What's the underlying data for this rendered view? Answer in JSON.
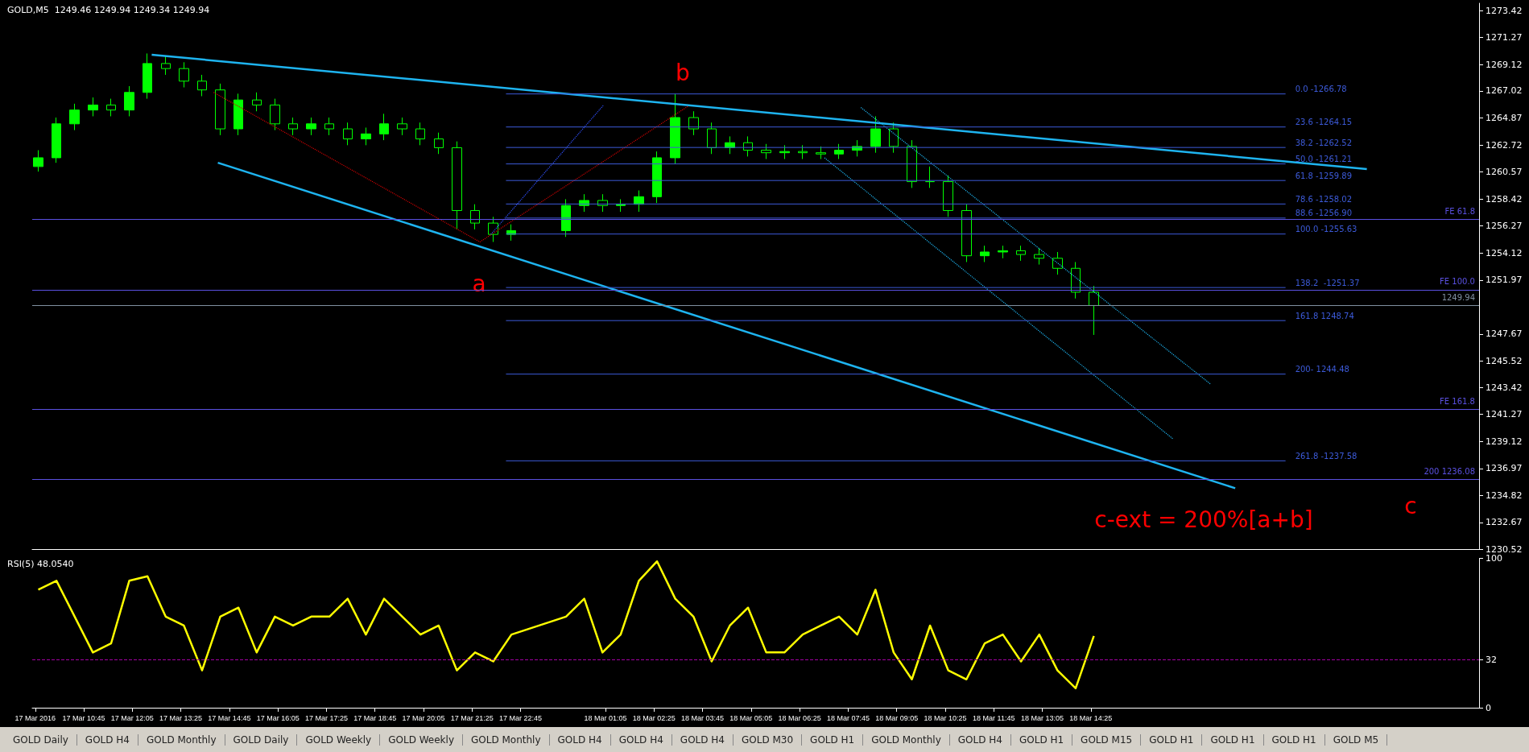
{
  "chart_data": [
    {
      "type": "candlestick",
      "title": "GOLD,M5  1249.46 1249.94 1249.34 1249.94",
      "tick_labels": "y",
      "x": [
        "2016-03-17T09:30",
        "2016-03-17T10:00",
        "2016-03-17T10:30",
        "2016-03-17T11:00",
        "2016-03-17T11:30",
        "2016-03-17T12:00",
        "2016-03-17T12:30",
        "2016-03-17T13:00",
        "2016-03-17T13:30",
        "2016-03-17T14:00",
        "2016-03-17T14:30",
        "2016-03-17T15:00",
        "2016-03-17T15:30",
        "2016-03-17T16:00",
        "2016-03-17T16:30",
        "2016-03-17T17:00",
        "2016-03-17T17:30",
        "2016-03-17T18:00",
        "2016-03-17T18:30",
        "2016-03-17T19:00",
        "2016-03-17T19:30",
        "2016-03-17T20:00",
        "2016-03-17T20:30",
        "2016-03-17T21:00",
        "2016-03-17T21:30",
        "2016-03-17T22:00",
        "2016-03-17T22:30",
        "2016-03-18T00:00",
        "2016-03-18T00:30",
        "2016-03-18T01:00",
        "2016-03-18T01:30",
        "2016-03-18T02:00",
        "2016-03-18T02:30",
        "2016-03-18T03:00",
        "2016-03-18T03:30",
        "2016-03-18T04:00",
        "2016-03-18T04:30",
        "2016-03-18T05:00",
        "2016-03-18T05:30",
        "2016-03-18T06:00",
        "2016-03-18T06:30",
        "2016-03-18T07:00",
        "2016-03-18T07:30",
        "2016-03-18T08:00",
        "2016-03-18T08:30",
        "2016-03-18T09:00",
        "2016-03-18T09:30",
        "2016-03-18T10:00",
        "2016-03-18T10:30",
        "2016-03-18T11:00",
        "2016-03-18T11:30",
        "2016-03-18T12:00",
        "2016-03-18T12:30",
        "2016-03-18T13:00",
        "2016-03-18T13:30",
        "2016-03-18T14:00",
        "2016-03-18T14:30"
      ],
      "xlim": [
        "2016-03-17T09:20",
        "2016-03-19T01:05"
      ],
      "ylim": [
        1230.52,
        1274.0
      ],
      "yticks": [
        1273.42,
        1271.27,
        1269.12,
        1267.02,
        1264.87,
        1262.72,
        1260.57,
        1258.42,
        1256.27,
        1254.12,
        1251.97,
        1247.67,
        1245.52,
        1243.42,
        1241.27,
        1239.12,
        1236.97,
        1234.82,
        1232.67,
        1230.52
      ],
      "series": [
        {
          "color": "#00ff00",
          "ohlc": [
            [
              1261.0,
              1262.3,
              1260.6,
              1261.7
            ],
            [
              1261.7,
              1264.9,
              1261.3,
              1264.4
            ],
            [
              1264.4,
              1266.0,
              1263.9,
              1265.5
            ],
            [
              1265.5,
              1266.5,
              1265.0,
              1265.9
            ],
            [
              1265.9,
              1266.4,
              1265.0,
              1265.5
            ],
            [
              1265.5,
              1267.4,
              1265.0,
              1266.9
            ],
            [
              1266.9,
              1270.0,
              1266.4,
              1269.2
            ],
            [
              1269.2,
              1269.8,
              1268.3,
              1268.8
            ],
            [
              1268.8,
              1269.3,
              1267.3,
              1267.8
            ],
            [
              1267.8,
              1268.3,
              1266.6,
              1267.1
            ],
            [
              1267.1,
              1267.6,
              1263.5,
              1264.0
            ],
            [
              1264.0,
              1266.8,
              1263.5,
              1266.3
            ],
            [
              1266.3,
              1266.9,
              1265.4,
              1265.9
            ],
            [
              1265.9,
              1266.4,
              1263.9,
              1264.4
            ],
            [
              1264.4,
              1264.9,
              1263.5,
              1264.0
            ],
            [
              1264.0,
              1264.9,
              1263.5,
              1264.4
            ],
            [
              1264.4,
              1264.9,
              1263.5,
              1264.0
            ],
            [
              1264.0,
              1264.5,
              1262.7,
              1263.2
            ],
            [
              1263.2,
              1264.1,
              1262.7,
              1263.6
            ],
            [
              1263.6,
              1265.2,
              1263.1,
              1264.4
            ],
            [
              1264.4,
              1264.9,
              1263.5,
              1264.0
            ],
            [
              1264.0,
              1264.5,
              1262.7,
              1263.2
            ],
            [
              1263.2,
              1263.7,
              1262.0,
              1262.5
            ],
            [
              1262.5,
              1263.0,
              1256.0,
              1257.5
            ],
            [
              1257.5,
              1258.0,
              1256.0,
              1256.5
            ],
            [
              1256.5,
              1257.0,
              1255.0,
              1255.6
            ],
            [
              1255.6,
              1256.4,
              1255.1,
              1255.9
            ],
            [
              1255.9,
              1258.4,
              1255.4,
              1257.9
            ],
            [
              1257.9,
              1258.8,
              1257.4,
              1258.3
            ],
            [
              1258.3,
              1258.8,
              1257.4,
              1257.9
            ],
            [
              1257.9,
              1258.4,
              1257.4,
              1258.0
            ],
            [
              1258.0,
              1259.1,
              1257.4,
              1258.6
            ],
            [
              1258.6,
              1262.2,
              1258.1,
              1261.7
            ],
            [
              1261.7,
              1266.78,
              1261.2,
              1264.9
            ],
            [
              1264.9,
              1265.4,
              1263.5,
              1264.0
            ],
            [
              1264.0,
              1264.5,
              1262.0,
              1262.5
            ],
            [
              1262.5,
              1263.4,
              1262.0,
              1262.9
            ],
            [
              1262.9,
              1263.4,
              1261.8,
              1262.3
            ],
            [
              1262.3,
              1262.8,
              1261.6,
              1262.1
            ],
            [
              1262.1,
              1262.7,
              1261.6,
              1262.2
            ],
            [
              1262.2,
              1262.7,
              1261.6,
              1262.1
            ],
            [
              1262.1,
              1262.6,
              1261.6,
              1262.0
            ],
            [
              1262.0,
              1262.8,
              1261.6,
              1262.3
            ],
            [
              1262.3,
              1263.1,
              1261.8,
              1262.6
            ],
            [
              1262.6,
              1265.0,
              1262.1,
              1264.0
            ],
            [
              1264.0,
              1264.5,
              1262.1,
              1262.6
            ],
            [
              1262.6,
              1263.1,
              1259.3,
              1259.8
            ],
            [
              1259.8,
              1261.0,
              1259.3,
              1259.8
            ],
            [
              1259.8,
              1260.3,
              1257.0,
              1257.5
            ],
            [
              1257.5,
              1258.0,
              1253.4,
              1253.9
            ],
            [
              1253.9,
              1254.7,
              1253.4,
              1254.2
            ],
            [
              1254.2,
              1254.7,
              1253.7,
              1254.3
            ],
            [
              1254.3,
              1254.7,
              1253.5,
              1254.0
            ],
            [
              1254.0,
              1254.5,
              1253.2,
              1253.7
            ],
            [
              1253.7,
              1254.2,
              1252.4,
              1252.9
            ],
            [
              1252.9,
              1253.4,
              1250.5,
              1251.0
            ],
            [
              1251.0,
              1251.5,
              1247.6,
              1249.94
            ]
          ]
        },
        {
          "type": "line",
          "color": "#1eb4f0",
          "x": [
            "2016-03-17T12:37",
            "2016-03-18T22:00"
          ],
          "values": [
            1269.9,
            1260.8
          ]
        },
        {
          "type": "line",
          "color": "#1eb4f0",
          "x": [
            "2016-03-17T14:26",
            "2016-03-18T18:23"
          ],
          "values": [
            1261.3,
            1235.4
          ]
        },
        {
          "type": "line",
          "color": "#1eb4f0",
          "line_style": "dotted",
          "x": [
            "2016-03-18T08:06",
            "2016-03-18T17:42"
          ],
          "values": [
            1265.7,
            1243.7
          ]
        },
        {
          "type": "line",
          "color": "#1eb4f0",
          "line_style": "dotted",
          "x": [
            "2016-03-18T07:06",
            "2016-03-18T16:41"
          ],
          "values": [
            1261.7,
            1239.3
          ]
        },
        {
          "type": "line",
          "color": "#cc0000",
          "line_style": "dotted",
          "x": [
            "2016-03-17T14:19",
            "2016-03-17T21:38",
            "2016-03-18T03:21"
          ],
          "values": [
            1266.9,
            1255.0,
            1265.8
          ]
        },
        {
          "type": "line",
          "color": "#3050ff",
          "line_style": "dotted",
          "x": [
            "2016-03-17T21:56",
            "2016-03-18T01:02"
          ],
          "values": [
            1255.6,
            1265.9
          ]
        },
        {
          "type": "line",
          "name": "0.0 -1266.78",
          "color": "#3c5ad8",
          "x": [
            "2016-03-17T22:21",
            "2016-03-18T19:46"
          ],
          "values": [
            1266.78,
            1266.78
          ]
        },
        {
          "type": "line",
          "name": "23.6 -1264.15",
          "color": "#3c5ad8",
          "x": [
            "2016-03-17T22:21",
            "2016-03-18T19:46"
          ],
          "values": [
            1264.15,
            1264.15
          ]
        },
        {
          "type": "line",
          "name": "38.2 -1262.52",
          "color": "#3c5ad8",
          "x": [
            "2016-03-17T22:21",
            "2016-03-18T19:46"
          ],
          "values": [
            1262.52,
            1262.52
          ]
        },
        {
          "type": "line",
          "name": "50.0 -1261.21",
          "color": "#3c5ad8",
          "x": [
            "2016-03-17T22:21",
            "2016-03-18T19:46"
          ],
          "values": [
            1261.21,
            1261.21
          ]
        },
        {
          "type": "line",
          "name": "61.8 -1259.89",
          "color": "#3c5ad8",
          "x": [
            "2016-03-17T22:21",
            "2016-03-18T19:46"
          ],
          "values": [
            1259.89,
            1259.89
          ]
        },
        {
          "type": "line",
          "name": "78.6 -1258.02",
          "color": "#3c5ad8",
          "x": [
            "2016-03-17T22:21",
            "2016-03-18T19:46"
          ],
          "values": [
            1258.02,
            1258.02
          ]
        },
        {
          "type": "line",
          "name": "88.6 -1256.90",
          "color": "#3c5ad8",
          "x": [
            "2016-03-17T22:21",
            "2016-03-18T19:46"
          ],
          "values": [
            1256.9,
            1256.9
          ]
        },
        {
          "type": "line",
          "name": "100.0 -1255.63",
          "color": "#3c5ad8",
          "x": [
            "2016-03-17T22:21",
            "2016-03-18T19:46"
          ],
          "values": [
            1255.63,
            1255.63
          ]
        },
        {
          "type": "line",
          "name": "138.2  -1251.37",
          "color": "#3c5ad8",
          "x": [
            "2016-03-17T22:21",
            "2016-03-18T19:46"
          ],
          "values": [
            1251.37,
            1251.37
          ]
        },
        {
          "type": "line",
          "name": "161.8 1248.74",
          "color": "#3c5ad8",
          "x": [
            "2016-03-17T22:21",
            "2016-03-18T19:46"
          ],
          "values": [
            1248.74,
            1248.74
          ]
        },
        {
          "type": "line",
          "name": "200- 1244.48",
          "color": "#3c5ad8",
          "x": [
            "2016-03-17T22:21",
            "2016-03-18T19:46"
          ],
          "values": [
            1244.48,
            1244.48
          ]
        },
        {
          "type": "line",
          "name": "261.8 -1237.58",
          "color": "#3c5ad8",
          "x": [
            "2016-03-17T22:21",
            "2016-03-18T19:46"
          ],
          "values": [
            1237.58,
            1237.58
          ]
        }
      ],
      "ref_lines": [
        {
          "axis": "y",
          "value": 1256.8,
          "label": "FE 61.8",
          "color": "#5a50e0"
        },
        {
          "axis": "y",
          "value": 1251.2,
          "label": "FE 100.0",
          "color": "#5a50e0"
        },
        {
          "axis": "y",
          "value": 1241.7,
          "label": "FE 161.8",
          "color": "#5a50e0"
        },
        {
          "axis": "y",
          "value": 1236.08,
          "label": "200 1236.08",
          "color": "#5a50e0"
        },
        {
          "axis": "y",
          "value": 1249.94,
          "label": "1249.94",
          "color": "#8090a0"
        }
      ],
      "annotations": [
        "a",
        "b",
        "c",
        "c-ext = 200%[a+b]"
      ]
    },
    {
      "type": "line",
      "title": "RSI(5) 48.0540",
      "x": [
        "2016-03-17T09:30",
        "2016-03-17T10:00",
        "2016-03-17T10:30",
        "2016-03-17T11:00",
        "2016-03-17T11:30",
        "2016-03-17T12:00",
        "2016-03-17T12:30",
        "2016-03-17T13:00",
        "2016-03-17T13:30",
        "2016-03-17T14:00",
        "2016-03-17T14:30",
        "2016-03-17T15:00",
        "2016-03-17T15:30",
        "2016-03-17T16:00",
        "2016-03-17T16:30",
        "2016-03-17T17:00",
        "2016-03-17T17:30",
        "2016-03-17T18:00",
        "2016-03-17T18:30",
        "2016-03-17T19:00",
        "2016-03-17T19:30",
        "2016-03-17T20:00",
        "2016-03-17T20:30",
        "2016-03-17T21:00",
        "2016-03-17T21:30",
        "2016-03-17T22:00",
        "2016-03-17T22:30",
        "2016-03-18T00:00",
        "2016-03-18T00:30",
        "2016-03-18T01:00",
        "2016-03-18T01:30",
        "2016-03-18T02:00",
        "2016-03-18T02:30",
        "2016-03-18T03:00",
        "2016-03-18T03:30",
        "2016-03-18T04:00",
        "2016-03-18T04:30",
        "2016-03-18T05:00",
        "2016-03-18T05:30",
        "2016-03-18T06:00",
        "2016-03-18T06:30",
        "2016-03-18T07:00",
        "2016-03-18T07:30",
        "2016-03-18T08:00",
        "2016-03-18T08:30",
        "2016-03-18T09:00",
        "2016-03-18T09:30",
        "2016-03-18T10:00",
        "2016-03-18T10:30",
        "2016-03-18T11:00",
        "2016-03-18T11:30",
        "2016-03-18T12:00",
        "2016-03-18T12:30",
        "2016-03-18T13:00",
        "2016-03-18T13:30",
        "2016-03-18T14:00",
        "2016-03-18T14:30"
      ],
      "xlim": [
        "2016-03-17T09:20",
        "2016-03-19T01:05"
      ],
      "xticks": [
        {
          "value": "2016-03-17T09:25",
          "label": "17 Mar 2016"
        },
        {
          "value": "2016-03-17T10:45",
          "label": "17 Mar 10:45"
        },
        {
          "value": "2016-03-17T12:05",
          "label": "17 Mar 12:05"
        },
        {
          "value": "2016-03-17T13:25",
          "label": "17 Mar 13:25"
        },
        {
          "value": "2016-03-17T14:45",
          "label": "17 Mar 14:45"
        },
        {
          "value": "2016-03-17T16:05",
          "label": "17 Mar 16:05"
        },
        {
          "value": "2016-03-17T17:25",
          "label": "17 Mar 17:25"
        },
        {
          "value": "2016-03-17T18:45",
          "label": "17 Mar 18:45"
        },
        {
          "value": "2016-03-17T20:05",
          "label": "17 Mar 20:05"
        },
        {
          "value": "2016-03-17T21:25",
          "label": "17 Mar 21:25"
        },
        {
          "value": "2016-03-17T22:45",
          "label": "17 Mar 22:45"
        },
        {
          "value": "2016-03-18T01:05",
          "label": "18 Mar 01:05"
        },
        {
          "value": "2016-03-18T02:25",
          "label": "18 Mar 02:25"
        },
        {
          "value": "2016-03-18T03:45",
          "label": "18 Mar 03:45"
        },
        {
          "value": "2016-03-18T05:05",
          "label": "18 Mar 05:05"
        },
        {
          "value": "2016-03-18T06:25",
          "label": "18 Mar 06:25"
        },
        {
          "value": "2016-03-18T07:45",
          "label": "18 Mar 07:45"
        },
        {
          "value": "2016-03-18T09:05",
          "label": "18 Mar 09:05"
        },
        {
          "value": "2016-03-18T10:25",
          "label": "18 Mar 10:25"
        },
        {
          "value": "2016-03-18T11:45",
          "label": "18 Mar 11:45"
        },
        {
          "value": "2016-03-18T13:05",
          "label": "18 Mar 13:05"
        },
        {
          "value": "2016-03-18T14:25",
          "label": "18 Mar 14:25"
        }
      ],
      "ylim": [
        0,
        100
      ],
      "yticks": [
        0,
        32,
        100
      ],
      "series": [
        {
          "color": "#ffff00",
          "values": [
            79,
            85,
            61,
            37,
            43,
            85,
            88,
            61,
            55,
            25,
            61,
            67,
            37,
            61,
            55,
            61,
            61,
            73,
            49,
            73,
            61,
            49,
            55,
            25,
            37,
            31,
            49,
            61,
            73,
            37,
            49,
            85,
            98,
            73,
            61,
            31,
            55,
            67,
            37,
            37,
            49,
            55,
            61,
            49,
            79,
            37,
            19,
            55,
            25,
            19,
            43,
            49,
            31,
            49,
            25,
            13,
            48
          ]
        }
      ],
      "ref_lines": [
        {
          "axis": "y",
          "value": 32,
          "color": "#a000a0",
          "line_style": "dashed"
        }
      ],
      "annotations": [
        "GOLD Daily",
        "GOLD H4",
        "GOLD Monthly",
        "GOLD Daily",
        "GOLD Weekly",
        "GOLD Weekly",
        "GOLD Monthly",
        "GOLD H4",
        "GOLD H4",
        "GOLD H4",
        "GOLD M30",
        "GOLD H1",
        "GOLD Monthly",
        "GOLD H4",
        "GOLD H1",
        "GOLD M15",
        "GOLD H1",
        "GOLD H1",
        "GOLD H1",
        "GOLD M5"
      ]
    }
  ]
}
